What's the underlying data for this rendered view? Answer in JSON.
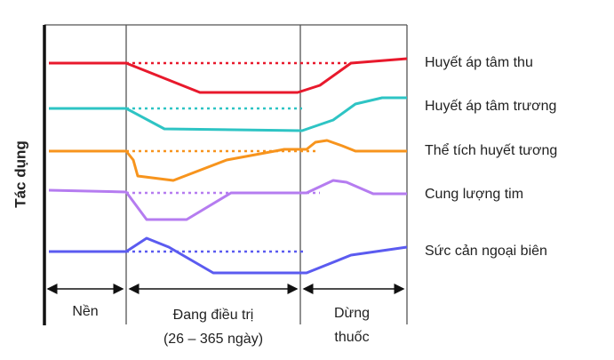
{
  "y_axis_label": "Tác dụng",
  "series_labels": [
    "Huyết áp tâm thu",
    "Huyết áp tâm trương",
    "Thể tích huyết tương",
    "Cung lượng tim",
    "Sức cản ngoại biên"
  ],
  "phases": [
    {
      "lines": [
        "Nền"
      ]
    },
    {
      "lines": [
        "Đang điều trị",
        "(26 – 365 ngày)"
      ]
    },
    {
      "lines": [
        "Dừng",
        "thuốc"
      ]
    }
  ]
}
